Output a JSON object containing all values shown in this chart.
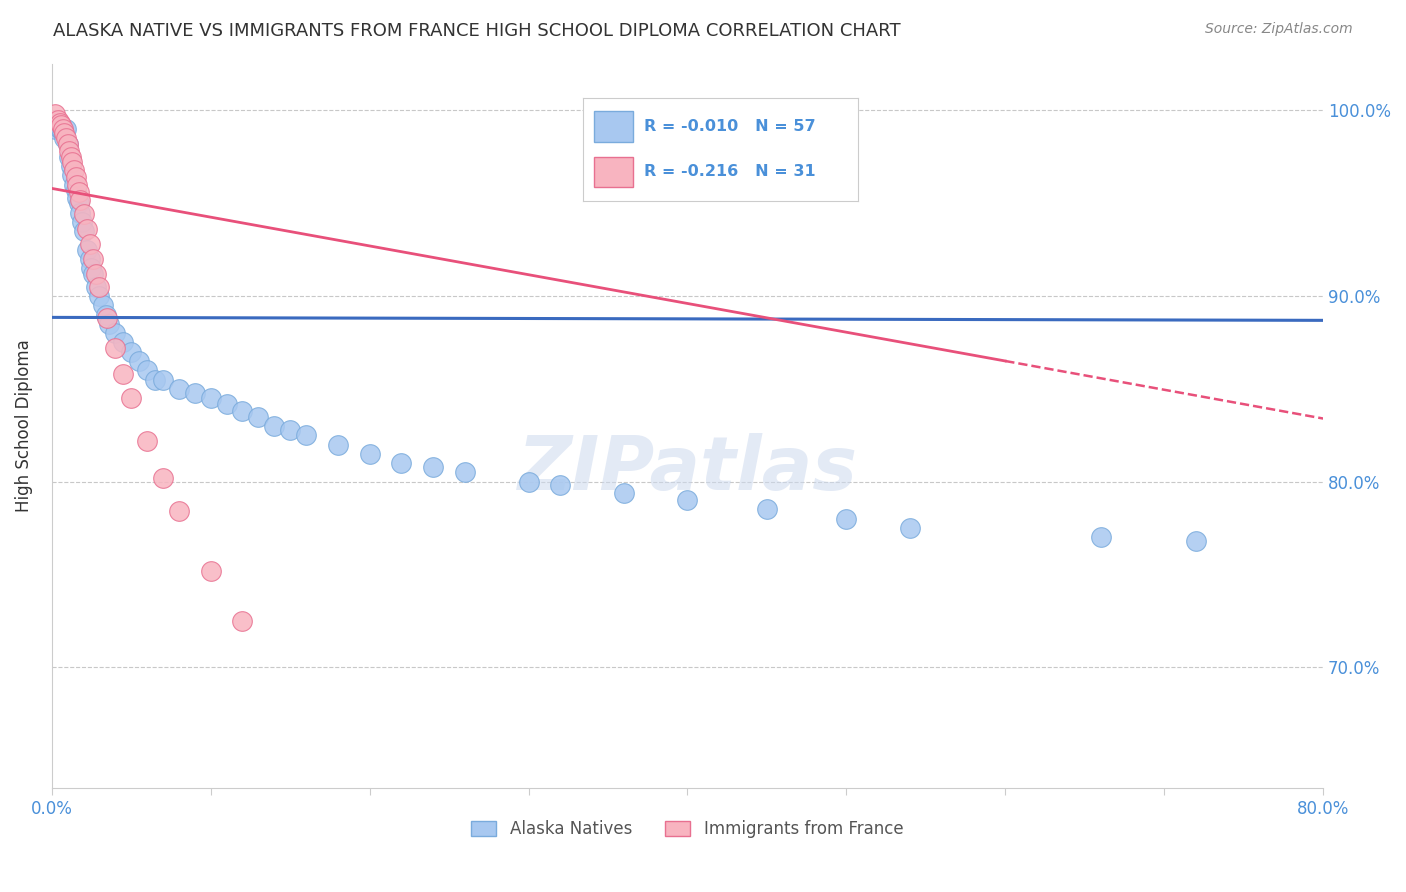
{
  "title": "ALASKA NATIVE VS IMMIGRANTS FROM FRANCE HIGH SCHOOL DIPLOMA CORRELATION CHART",
  "source": "Source: ZipAtlas.com",
  "ylabel": "High School Diploma",
  "legend_label_alaska": "Alaska Natives",
  "legend_label_france": "Immigrants from France",
  "R_alaska": -0.01,
  "N_alaska": 57,
  "R_france": -0.216,
  "N_france": 31,
  "xmin": 0.0,
  "xmax": 0.8,
  "ymin": 0.635,
  "ymax": 1.025,
  "yticks": [
    0.7,
    0.8,
    0.9,
    1.0
  ],
  "ytick_labels": [
    "70.0%",
    "80.0%",
    "90.0%",
    "100.0%"
  ],
  "alaska_color": "#a8c8f0",
  "france_color": "#f8b4c0",
  "alaska_edge": "#7aabdc",
  "france_edge": "#e87090",
  "trendline_alaska_color": "#3a6abf",
  "trendline_france_color": "#e8507a",
  "alaska_x": [
    0.002,
    0.004,
    0.005,
    0.006,
    0.007,
    0.008,
    0.009,
    0.01,
    0.011,
    0.012,
    0.013,
    0.014,
    0.015,
    0.016,
    0.017,
    0.018,
    0.019,
    0.02,
    0.022,
    0.024,
    0.025,
    0.026,
    0.028,
    0.03,
    0.032,
    0.034,
    0.036,
    0.04,
    0.045,
    0.05,
    0.055,
    0.06,
    0.065,
    0.07,
    0.08,
    0.09,
    0.1,
    0.11,
    0.12,
    0.13,
    0.14,
    0.15,
    0.16,
    0.18,
    0.2,
    0.22,
    0.24,
    0.26,
    0.3,
    0.32,
    0.36,
    0.4,
    0.45,
    0.5,
    0.54,
    0.66,
    0.72
  ],
  "alaska_y": [
    0.99,
    0.993,
    0.99,
    0.99,
    0.99,
    0.985,
    0.99,
    0.982,
    0.975,
    0.97,
    0.965,
    0.96,
    0.957,
    0.953,
    0.95,
    0.945,
    0.94,
    0.935,
    0.925,
    0.92,
    0.915,
    0.912,
    0.905,
    0.9,
    0.895,
    0.89,
    0.885,
    0.88,
    0.875,
    0.87,
    0.865,
    0.86,
    0.855,
    0.855,
    0.85,
    0.848,
    0.845,
    0.842,
    0.838,
    0.835,
    0.83,
    0.828,
    0.825,
    0.82,
    0.815,
    0.81,
    0.808,
    0.805,
    0.8,
    0.798,
    0.794,
    0.79,
    0.785,
    0.78,
    0.775,
    0.77,
    0.768
  ],
  "france_x": [
    0.002,
    0.004,
    0.005,
    0.006,
    0.007,
    0.008,
    0.009,
    0.01,
    0.011,
    0.012,
    0.013,
    0.014,
    0.015,
    0.016,
    0.017,
    0.018,
    0.02,
    0.022,
    0.024,
    0.026,
    0.028,
    0.03,
    0.035,
    0.04,
    0.045,
    0.05,
    0.06,
    0.07,
    0.08,
    0.1,
    0.12
  ],
  "france_y": [
    0.998,
    0.995,
    0.993,
    0.992,
    0.99,
    0.988,
    0.985,
    0.982,
    0.978,
    0.975,
    0.972,
    0.968,
    0.964,
    0.96,
    0.956,
    0.952,
    0.944,
    0.936,
    0.928,
    0.92,
    0.912,
    0.905,
    0.888,
    0.872,
    0.858,
    0.845,
    0.822,
    0.802,
    0.784,
    0.752,
    0.725
  ],
  "background_color": "#ffffff",
  "grid_color": "#c8c8c8",
  "axis_label_color": "#4a90d9",
  "title_color": "#333333",
  "trendline_alaska_intercept": 0.8885,
  "trendline_alaska_slope": -0.002,
  "trendline_france_intercept": 0.958,
  "trendline_france_slope": -0.155
}
